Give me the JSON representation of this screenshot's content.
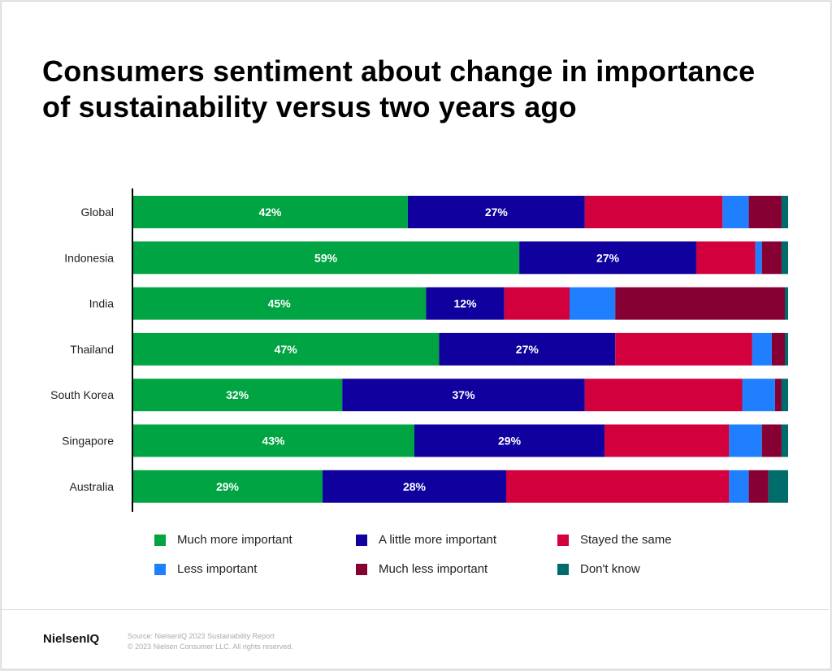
{
  "title": "Consumers sentiment about change in importance of sustainability versus two years ago",
  "chart_data": {
    "type": "bar",
    "orientation": "horizontal",
    "stacked": true,
    "title": "Consumers sentiment about change in importance of sustainability versus two years ago",
    "categories": [
      "Global",
      "Indonesia",
      "India",
      "Thailand",
      "South Korea",
      "Singapore",
      "Australia"
    ],
    "xlim": [
      0,
      100
    ],
    "grid": false,
    "legend_position": "bottom",
    "series": [
      {
        "name": "Much more important",
        "color": "#00a443",
        "values": [
          42,
          59,
          45,
          47,
          32,
          43,
          29
        ],
        "labels": [
          "42%",
          "59%",
          "45%",
          "47%",
          "32%",
          "43%",
          "29%"
        ]
      },
      {
        "name": "A little more important",
        "color": "#10009e",
        "values": [
          27,
          27,
          12,
          27,
          37,
          29,
          28
        ],
        "labels": [
          "27%",
          "27%",
          "12%",
          "27%",
          "37%",
          "29%",
          "28%"
        ]
      },
      {
        "name": "Stayed the same",
        "color": "#d2003c",
        "values": [
          21,
          9,
          10,
          21,
          24,
          19,
          34
        ]
      },
      {
        "name": "Less important",
        "color": "#1f7fff",
        "values": [
          4,
          1,
          7,
          3,
          5,
          5,
          3
        ]
      },
      {
        "name": "Much less important",
        "color": "#870034",
        "values": [
          5,
          3,
          26,
          2,
          1,
          3,
          3
        ]
      },
      {
        "name": "Don't know",
        "color": "#006b6b",
        "values": [
          1,
          1,
          0.5,
          0.5,
          1,
          1,
          3
        ]
      }
    ]
  },
  "footer": {
    "logo": "NielsenIQ",
    "source": "Source: NielsenIQ 2023 Sustainability Report",
    "copyright": "© 2023 Nielsen Consumer LLC. All rights reserved."
  }
}
